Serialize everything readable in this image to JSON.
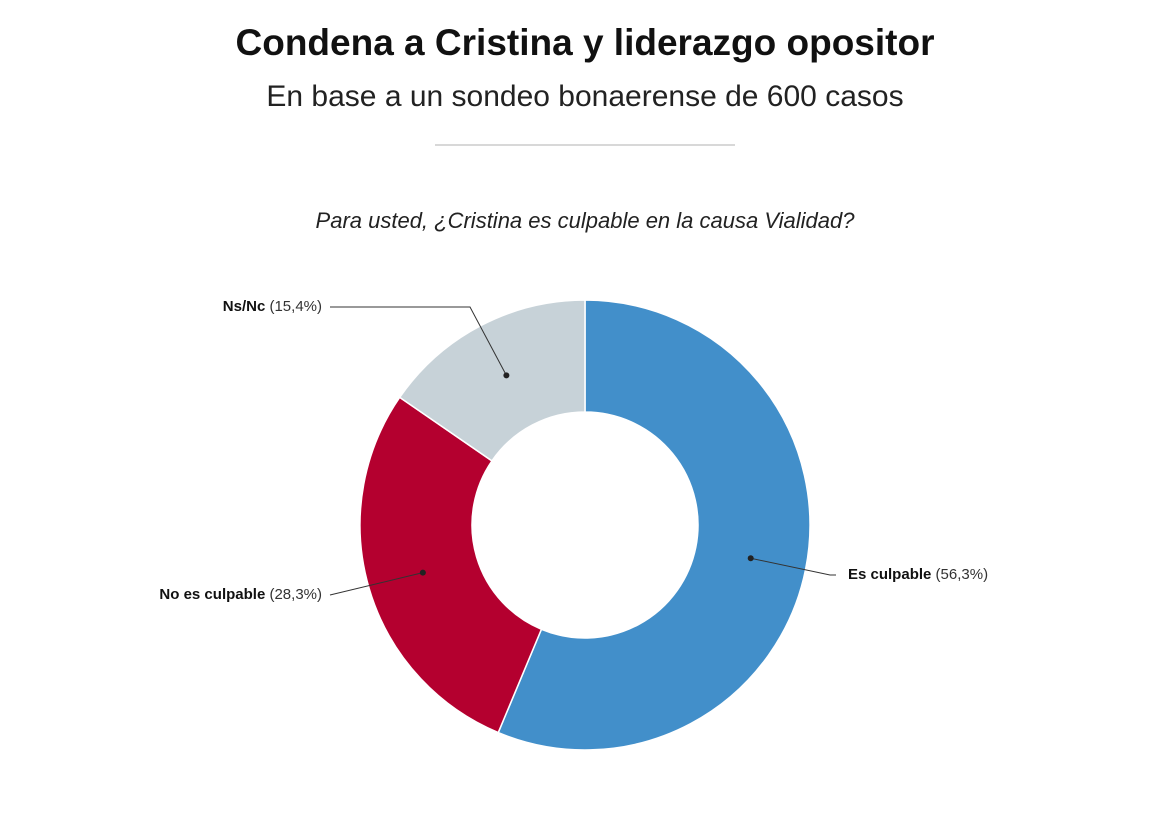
{
  "chart_data": {
    "type": "pie",
    "title": "Condena a Cristina y liderazgo opositor",
    "subtitle": "En base a un sondeo bonaerense de 600 casos",
    "question": "Para usted, ¿Cristina es culpable en la causa Vialidad?",
    "categories": [
      "Es culpable",
      "No es culpable",
      "Ns/Nc"
    ],
    "values": [
      56.3,
      28.3,
      15.4
    ],
    "value_labels": [
      "(56,3%)",
      "(28,3%)",
      "(15,4%)"
    ],
    "colors": [
      "#428fca",
      "#b4002f",
      "#c7d2d8"
    ],
    "donut": true
  }
}
